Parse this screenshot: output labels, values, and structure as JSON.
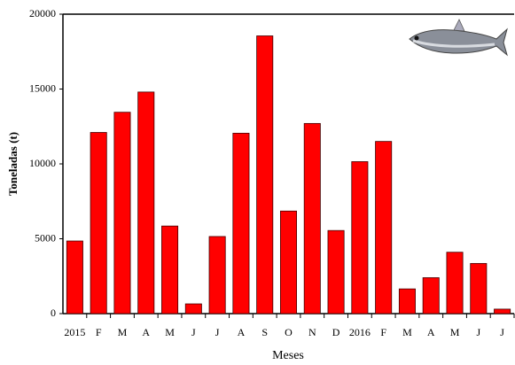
{
  "chart_data": {
    "type": "bar",
    "x_label": "Meses",
    "y_label": "Toneladas (t)",
    "categories": [
      "2015",
      "F",
      "M",
      "A",
      "M",
      "J",
      "J",
      "A",
      "S",
      "O",
      "N",
      "D",
      "2016",
      "F",
      "M",
      "A",
      "M",
      "J",
      "J"
    ],
    "values": [
      4850,
      12100,
      13450,
      14800,
      5850,
      650,
      5150,
      12050,
      18550,
      6850,
      12700,
      5550,
      10150,
      11500,
      1650,
      2400,
      4100,
      3350,
      300
    ],
    "color": "#ff0000",
    "ylim": [
      0,
      20000
    ],
    "yticks": [
      0,
      5000,
      10000,
      15000,
      20000
    ]
  }
}
